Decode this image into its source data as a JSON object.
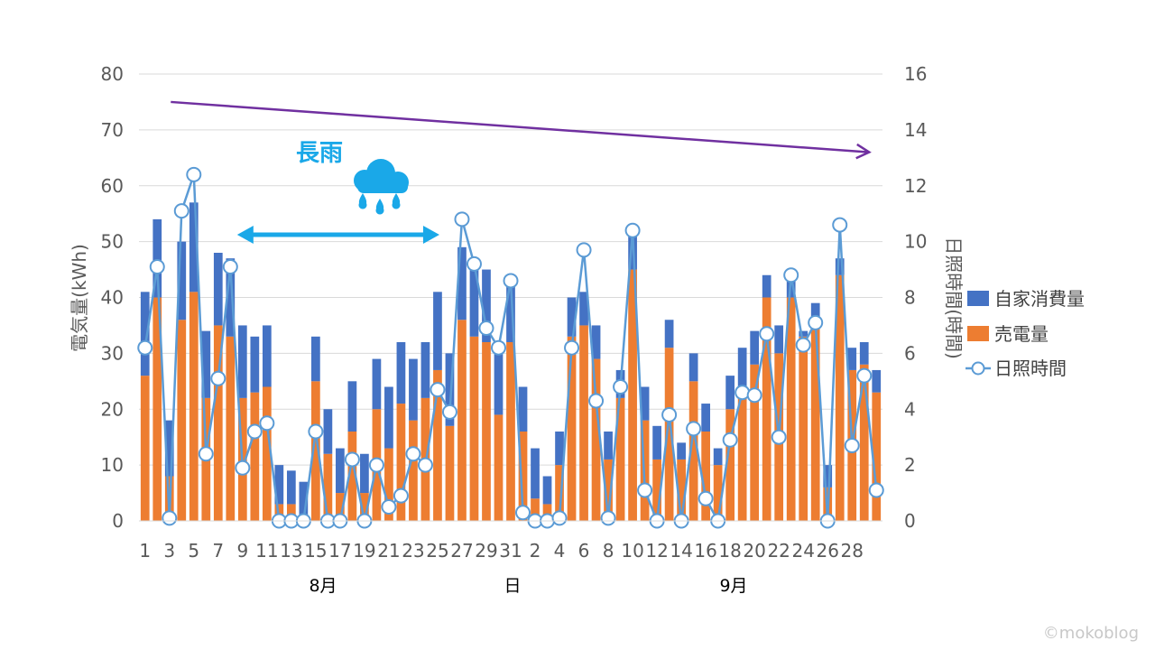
{
  "chart_data": {
    "type": "bar+line",
    "xlabel": "日",
    "ylabel_left": "電気量(kWh)",
    "ylabel_right": "日照時間(時間)",
    "ylim_left": [
      0,
      80
    ],
    "ylim_right": [
      0,
      16
    ],
    "yticks_left": [
      "0",
      "10",
      "20",
      "30",
      "40",
      "50",
      "60",
      "70",
      "80"
    ],
    "yticks_right": [
      "0",
      "2",
      "4",
      "6",
      "8",
      "10",
      "12",
      "14",
      "16"
    ],
    "x_tick_labels": [
      "1",
      "3",
      "5",
      "7",
      "9",
      "11",
      "13",
      "15",
      "17",
      "19",
      "21",
      "23",
      "25",
      "27",
      "29",
      "31",
      "2",
      "4",
      "6",
      "8",
      "10",
      "12",
      "14",
      "16",
      "18",
      "20",
      "22",
      "24",
      "26",
      "28"
    ],
    "month_labels": [
      "8月",
      "9月"
    ],
    "legend": [
      "自家消費量",
      "売電量",
      "日照時間"
    ],
    "colors": {
      "self": "#4472c4",
      "sell": "#ed7d31",
      "sun_line": "#5b9bd5",
      "trend": "#7030a0",
      "rain": "#1aa8e8",
      "grid": "#d9d9d9"
    },
    "days": [
      "8/1",
      "8/2",
      "8/3",
      "8/4",
      "8/5",
      "8/6",
      "8/7",
      "8/8",
      "8/9",
      "8/10",
      "8/11",
      "8/12",
      "8/13",
      "8/14",
      "8/15",
      "8/16",
      "8/17",
      "8/18",
      "8/19",
      "8/20",
      "8/21",
      "8/22",
      "8/23",
      "8/24",
      "8/25",
      "8/26",
      "8/27",
      "8/28",
      "8/29",
      "8/30",
      "8/31",
      "9/1",
      "9/2",
      "9/3",
      "9/4",
      "9/5",
      "9/6",
      "9/7",
      "9/8",
      "9/9",
      "9/10",
      "9/11",
      "9/12",
      "9/13",
      "9/14",
      "9/15",
      "9/16",
      "9/17",
      "9/18",
      "9/19",
      "9/20",
      "9/21",
      "9/22",
      "9/23",
      "9/24",
      "9/25",
      "9/26",
      "9/27",
      "9/28",
      "9/29",
      "9/30"
    ],
    "series": [
      {
        "name": "売電量",
        "kind": "stacked-bar",
        "values": [
          26,
          40,
          8,
          36,
          41,
          22,
          35,
          33,
          22,
          23,
          24,
          3,
          3,
          1,
          25,
          12,
          5,
          16,
          5,
          20,
          13,
          21,
          18,
          22,
          27,
          17,
          36,
          33,
          32,
          19,
          32,
          16,
          4,
          3,
          10,
          33,
          35,
          29,
          11,
          22,
          45,
          18,
          11,
          31,
          11,
          25,
          16,
          10,
          20,
          23,
          28,
          40,
          30,
          40,
          33,
          35,
          6,
          44,
          27,
          28,
          23
        ]
      },
      {
        "name": "自家消費量",
        "kind": "stacked-bar",
        "values": [
          15,
          14,
          10,
          14,
          16,
          12,
          13,
          14,
          13,
          10,
          11,
          7,
          6,
          6,
          8,
          8,
          8,
          9,
          7,
          9,
          11,
          11,
          11,
          10,
          14,
          13,
          13,
          13,
          13,
          13,
          11,
          8,
          9,
          5,
          6,
          7,
          6,
          6,
          5,
          5,
          7,
          6,
          6,
          5,
          3,
          5,
          5,
          3,
          6,
          8,
          6,
          4,
          5,
          3,
          1,
          4,
          4,
          3,
          4,
          4,
          4
        ]
      },
      {
        "name": "日照時間",
        "kind": "line",
        "axis": "right",
        "values": [
          6.2,
          9.1,
          0.1,
          11.1,
          12.4,
          2.4,
          5.1,
          9.1,
          1.9,
          3.2,
          3.5,
          0,
          0,
          0,
          3.2,
          0,
          0,
          2.2,
          0,
          2.0,
          0.5,
          0.9,
          2.4,
          2.0,
          4.7,
          3.9,
          10.8,
          9.2,
          6.9,
          6.2,
          8.6,
          0.3,
          0,
          0,
          0.1,
          6.2,
          9.7,
          4.3,
          0.1,
          4.8,
          10.4,
          1.1,
          0,
          3.8,
          0,
          3.3,
          0.8,
          0,
          2.9,
          4.6,
          4.5,
          6.7,
          3.0,
          8.8,
          6.3,
          7.1,
          0,
          10.6,
          2.7,
          5.2,
          1.1
        ]
      }
    ],
    "annotations": {
      "rain_label": "長雨",
      "rain_period": [
        "8/9",
        "8/25"
      ]
    },
    "trend_arrow": {
      "from_kwh": 75,
      "to_kwh": 66,
      "from_day": "8/4",
      "to_day": "9/30"
    }
  },
  "watermark": "©mokoblog"
}
